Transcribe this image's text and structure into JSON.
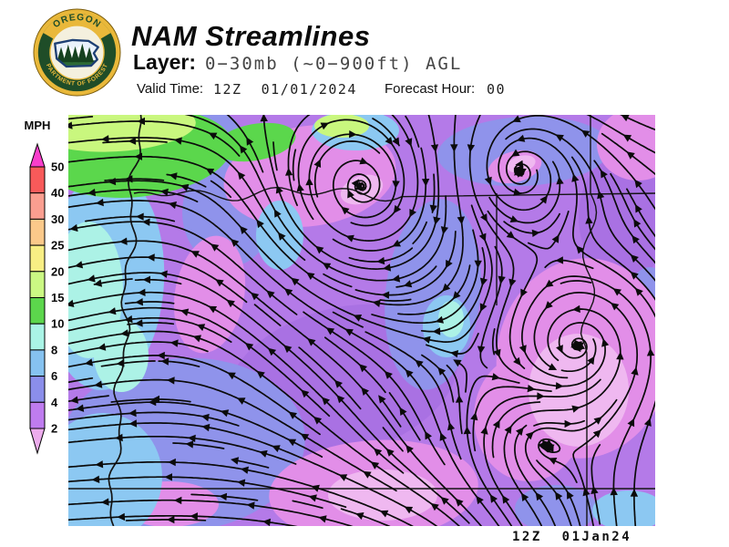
{
  "header": {
    "title": "NAM Streamlines",
    "layer_label": "Layer:",
    "layer_value": "0−30mb (~0−900ft) AGL",
    "valid_time_label": "Valid Time:",
    "valid_time_value": "12Z  01/01/2024",
    "forecast_hour_label": "Forecast Hour:",
    "forecast_hour_value": "00"
  },
  "logo": {
    "arc_top_text": "OREGON",
    "arc_bottom_text": "DEPARTMENT OF FORESTRY",
    "gold": "#E9B83A",
    "dark_green": "#1F4D28",
    "outline": "#7A5C0E",
    "cream": "#F4F0DE",
    "state_outline_blue": "#1D3F73",
    "tree_green": "#17421F",
    "ground_green": "#2D6A35"
  },
  "colorbar": {
    "unit_label": "MPH",
    "tick_labels": [
      "50",
      "40",
      "30",
      "25",
      "20",
      "15",
      "10",
      "8",
      "6",
      "4",
      "2"
    ],
    "segment_colors_top_to_bottom": [
      "#F85A5A",
      "#FA9E90",
      "#FBC98A",
      "#F8EE84",
      "#CBF883",
      "#5CD64C",
      "#AAF4E6",
      "#86C2F0",
      "#8B8EEA",
      "#BF7CEF"
    ],
    "over_arrow_color": "#F83ECB",
    "under_arrow_color": "#ECACEC",
    "outline_color": "#000000",
    "label_color": "#0B0B0B"
  },
  "map": {
    "caption": "12Z  01Jan24",
    "palette": {
      "base": "#B47AE8",
      "shade": "#A971E3",
      "pink": "#E28EE8",
      "light_pink": "#EFB8F0",
      "periwinkle": "#8F93EB",
      "light_blue": "#8CC8F2",
      "cyan": "#ACF2E6",
      "green": "#5BD74C",
      "yellow_green": "#C9F77E",
      "border": "#141414",
      "streamline": "#0B0B0B"
    }
  }
}
